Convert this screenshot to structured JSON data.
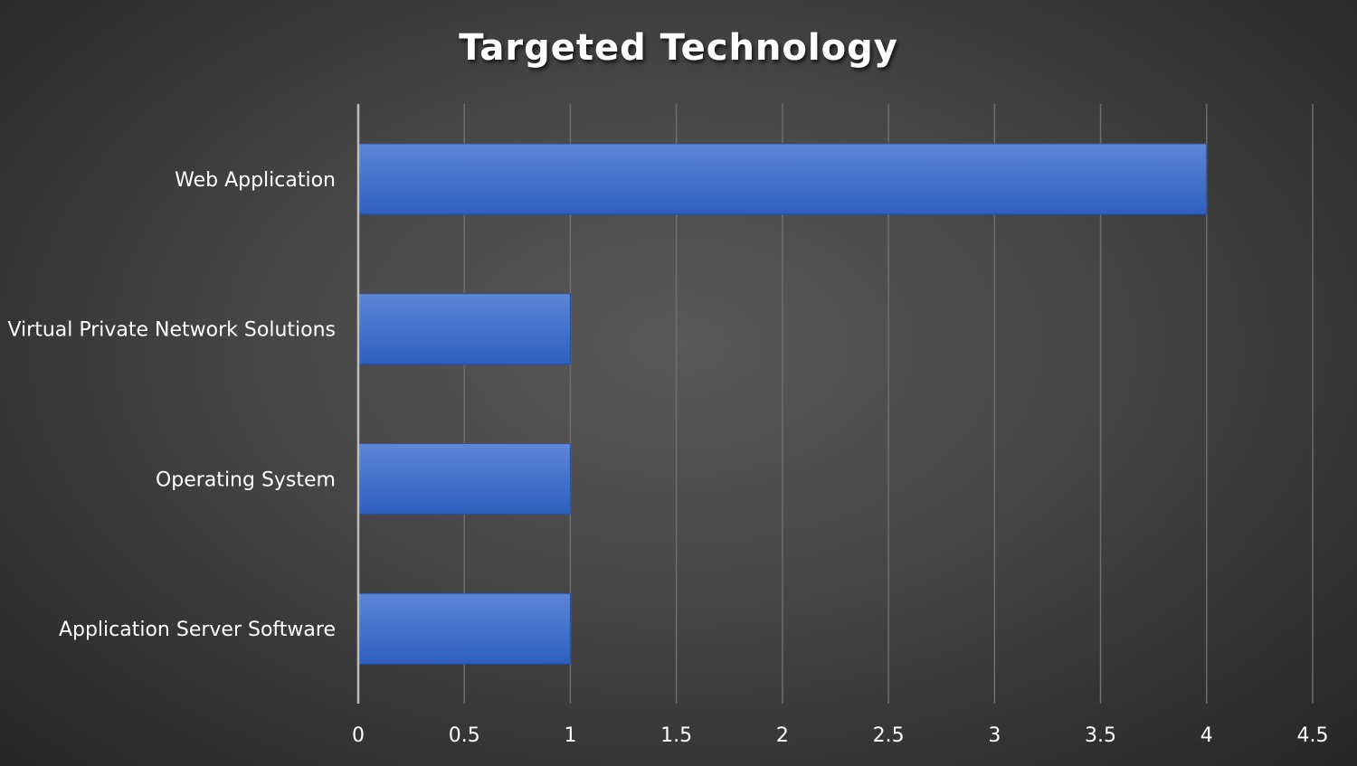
{
  "chart_data": {
    "type": "bar",
    "orientation": "horizontal",
    "title": "Targeted Technology",
    "categories": [
      "Web Application",
      "Virtual Private Network Solutions",
      "Operating System",
      "Application Server Software"
    ],
    "values": [
      4,
      1,
      1,
      1
    ],
    "xlim": [
      0,
      4.5
    ],
    "x_ticks": [
      "0",
      "0.5",
      "1",
      "1.5",
      "2",
      "2.5",
      "3",
      "3.5",
      "4",
      "4.5"
    ],
    "xlabel": "",
    "ylabel": "",
    "grid": true,
    "legend": "none",
    "colors": {
      "bar_top": "#5b87d6",
      "bar_bottom": "#2f5fbf",
      "background": "#474747",
      "text": "#ffffff"
    }
  }
}
